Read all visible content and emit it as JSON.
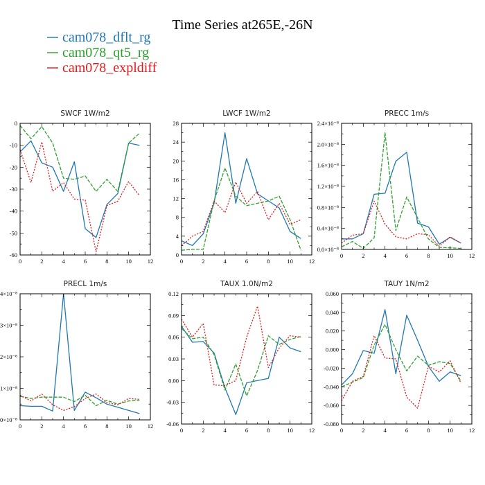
{
  "page": {
    "title": "Time Series at265E,-26N"
  },
  "legend": [
    {
      "label": "cam078_dflt_rg",
      "color": "#1f77b4"
    },
    {
      "label": "cam078_qt5_rg",
      "color": "#2ca02c"
    },
    {
      "label": "cam078_expldiff",
      "color": "#e31a1c"
    }
  ],
  "chart_data": [
    {
      "type": "line",
      "title": "SWCF  1W/m2",
      "xlim": [
        0,
        12
      ],
      "ylim": [
        -60,
        0
      ],
      "xticks": [
        0,
        2,
        4,
        6,
        8,
        10,
        12
      ],
      "xtick_labels": [
        "0",
        "2",
        "4",
        "6",
        "8",
        "10",
        "12"
      ],
      "yticks": [
        -60,
        -50,
        -40,
        -30,
        -20,
        -10,
        0
      ],
      "ytick_labels": [
        "-60",
        "-50",
        "-40",
        "-30",
        "-20",
        "-10",
        "0"
      ],
      "x": [
        0,
        1,
        2,
        3,
        4,
        5,
        6,
        7,
        8,
        9,
        10,
        11
      ],
      "series": [
        {
          "name": "cam078_dflt_rg",
          "color": "#1f77b4",
          "dash": "none",
          "values": [
            -13,
            -8,
            -18,
            -20,
            -31,
            -17.5,
            -48,
            -52,
            -37,
            -32,
            -9,
            -10
          ]
        },
        {
          "name": "cam078_qt5_rg",
          "color": "#2ca02c",
          "dash": "5,2",
          "values": [
            -1,
            -7,
            -1.5,
            -9,
            -25,
            -25.5,
            -24,
            -31,
            -25.5,
            -31,
            -9,
            -4.5
          ]
        },
        {
          "name": "cam078_expldiff",
          "color": "#e31a1c",
          "dash": "2,2",
          "values": [
            -12,
            -27,
            -8.5,
            -31,
            -27,
            -34.5,
            -35,
            -58.5,
            -37.5,
            -35.5,
            -26.5,
            -33
          ]
        }
      ]
    },
    {
      "type": "line",
      "title": "LWCF  1W/m2",
      "xlim": [
        0,
        12
      ],
      "ylim": [
        0,
        28
      ],
      "xticks": [
        0,
        2,
        4,
        6,
        8,
        10,
        12
      ],
      "xtick_labels": [
        "0",
        "2",
        "4",
        "6",
        "8",
        "10",
        "12"
      ],
      "yticks": [
        0,
        4,
        8,
        12,
        16,
        20,
        24,
        28
      ],
      "ytick_labels": [
        "0",
        "4",
        "8",
        "12",
        "16",
        "20",
        "24",
        "28"
      ],
      "x": [
        0,
        1,
        2,
        3,
        4,
        5,
        6,
        7,
        8,
        9,
        10,
        11
      ],
      "series": [
        {
          "name": "cam078_dflt_rg",
          "color": "#1f77b4",
          "dash": "none",
          "values": [
            3,
            2,
            4.5,
            11,
            26,
            11,
            20.5,
            13,
            11.5,
            10,
            5,
            3.5
          ]
        },
        {
          "name": "cam078_qt5_rg",
          "color": "#2ca02c",
          "dash": "5,2",
          "values": [
            1,
            1.2,
            1.2,
            11.5,
            18.5,
            12.5,
            10.5,
            11,
            11.5,
            12.5,
            7.5,
            1
          ]
        },
        {
          "name": "cam078_expldiff",
          "color": "#e31a1c",
          "dash": "2,2",
          "values": [
            2,
            4,
            5,
            11.5,
            9,
            15.5,
            11,
            13.5,
            7.5,
            11,
            6.5,
            7.5
          ]
        }
      ]
    },
    {
      "type": "line",
      "title": "PRECC   1m/s",
      "xlim": [
        0,
        12
      ],
      "ylim": [
        0,
        2.4
      ],
      "xticks": [
        0,
        2,
        4,
        6,
        8,
        10,
        12
      ],
      "xtick_labels": [
        "0",
        "2",
        "4",
        "6",
        "8",
        "10",
        "12"
      ],
      "yticks": [
        0,
        0.4,
        0.8,
        1.2,
        1.6,
        2.0,
        2.4
      ],
      "ytick_labels": [
        "0.0×10⁻⁸",
        "0.4×10⁻⁸",
        "0.8×10⁻⁸",
        "1.2×10⁻⁸",
        "1.6×10⁻⁸",
        "2.0×10⁻⁸",
        "2.4×10⁻⁸"
      ],
      "x": [
        0,
        1,
        2,
        3,
        4,
        5,
        6,
        7,
        8,
        9,
        10,
        11
      ],
      "series": [
        {
          "name": "cam078_dflt_rg",
          "color": "#1f77b4",
          "dash": "none",
          "values": [
            0.2,
            0.2,
            0.3,
            1.05,
            1.07,
            1.68,
            1.85,
            0.5,
            0.43,
            0.1,
            0.23,
            0.12
          ]
        },
        {
          "name": "cam078_qt5_rg",
          "color": "#2ca02c",
          "dash": "5,2",
          "values": [
            0.05,
            0.15,
            0.02,
            0.22,
            2.22,
            0.36,
            1.0,
            0.6,
            0.2,
            0.04,
            0.03,
            0.02
          ]
        },
        {
          "name": "cam078_expldiff",
          "color": "#e31a1c",
          "dash": "2,2",
          "values": [
            0.12,
            0.27,
            0.3,
            0.92,
            0.48,
            0.24,
            0.2,
            0.3,
            0.28,
            0.06,
            0.24,
            0.12
          ]
        }
      ]
    },
    {
      "type": "line",
      "title": "PRECL   1m/s",
      "xlim": [
        0,
        12
      ],
      "ylim": [
        0,
        4
      ],
      "xticks": [
        0,
        2,
        4,
        6,
        8,
        10,
        12
      ],
      "xtick_labels": [
        "0",
        "2",
        "4",
        "6",
        "8",
        "10",
        "12"
      ],
      "yticks": [
        0,
        1,
        2,
        3,
        4
      ],
      "ytick_labels": [
        "0×10⁻⁸",
        "1×10⁻⁸",
        "2×10⁻⁸",
        "3×10⁻⁸",
        "4×10⁻⁸"
      ],
      "x": [
        0,
        1,
        2,
        3,
        4,
        5,
        6,
        7,
        8,
        9,
        10,
        11
      ],
      "series": [
        {
          "name": "cam078_dflt_rg",
          "color": "#1f77b4",
          "dash": "none",
          "values": [
            0.45,
            0.43,
            0.43,
            0.28,
            4.0,
            0.3,
            0.88,
            0.7,
            0.5,
            0.4,
            0.3,
            0.2
          ]
        },
        {
          "name": "cam078_qt5_rg",
          "color": "#2ca02c",
          "dash": "5,2",
          "values": [
            0.75,
            0.68,
            0.72,
            0.72,
            0.72,
            0.58,
            0.78,
            0.45,
            0.62,
            0.5,
            0.6,
            0.62
          ]
        },
        {
          "name": "cam078_expldiff",
          "color": "#e31a1c",
          "dash": "2,2",
          "values": [
            0.78,
            0.6,
            0.82,
            0.48,
            0.3,
            0.42,
            0.68,
            0.82,
            0.55,
            0.48,
            0.68,
            0.65
          ]
        }
      ]
    },
    {
      "type": "line",
      "title": "TAUX   1.0N/m2",
      "xlim": [
        0,
        12
      ],
      "ylim": [
        -0.06,
        0.12
      ],
      "xticks": [
        0,
        2,
        4,
        6,
        8,
        10,
        12
      ],
      "xtick_labels": [
        "0",
        "2",
        "4",
        "6",
        "8",
        "10",
        "12"
      ],
      "yticks": [
        -0.06,
        -0.03,
        0,
        0.03,
        0.06,
        0.09,
        0.12
      ],
      "ytick_labels": [
        "-0.06",
        "-0.03",
        "0.00",
        "0.03",
        "0.06",
        "0.09",
        "0.12"
      ],
      "x": [
        0,
        1,
        2,
        3,
        4,
        5,
        6,
        7,
        8,
        9,
        10,
        11
      ],
      "series": [
        {
          "name": "cam078_dflt_rg",
          "color": "#1f77b4",
          "dash": "none",
          "values": [
            0.075,
            0.053,
            0.054,
            0.038,
            -0.01,
            -0.047,
            -0.003,
            0.0,
            0.003,
            0.06,
            0.045,
            0.04
          ]
        },
        {
          "name": "cam078_qt5_rg",
          "color": "#2ca02c",
          "dash": "5,2",
          "values": [
            0.072,
            0.058,
            0.06,
            0.036,
            -0.013,
            0.023,
            -0.021,
            0.014,
            0.062,
            0.05,
            0.057,
            0.061
          ]
        },
        {
          "name": "cam078_expldiff",
          "color": "#e31a1c",
          "dash": "2,2",
          "values": [
            0.085,
            0.06,
            0.079,
            -0.006,
            -0.007,
            0.0,
            0.06,
            0.103,
            0.018,
            0.045,
            0.062,
            0.06
          ]
        }
      ]
    },
    {
      "type": "line",
      "title": "TAUY   1N/m2",
      "xlim": [
        0,
        12
      ],
      "ylim": [
        -0.08,
        0.06
      ],
      "xticks": [
        0,
        2,
        4,
        6,
        8,
        10,
        12
      ],
      "xtick_labels": [
        "0",
        "2",
        "4",
        "6",
        "8",
        "10",
        "12"
      ],
      "yticks": [
        -0.08,
        -0.06,
        -0.04,
        -0.02,
        0,
        0.02,
        0.04,
        0.06
      ],
      "ytick_labels": [
        "-0.080",
        "-0.060",
        "-0.040",
        "-0.020",
        "0.000",
        "0.020",
        "0.040",
        "0.060"
      ],
      "x": [
        0,
        1,
        2,
        3,
        4,
        5,
        6,
        7,
        8,
        9,
        10,
        11
      ],
      "series": [
        {
          "name": "cam078_dflt_rg",
          "color": "#1f77b4",
          "dash": "none",
          "values": [
            -0.038,
            -0.026,
            -0.001,
            -0.004,
            0.043,
            -0.026,
            0.037,
            0.01,
            -0.018,
            -0.034,
            -0.024,
            -0.028
          ]
        },
        {
          "name": "cam078_qt5_rg",
          "color": "#2ca02c",
          "dash": "5,2",
          "values": [
            -0.04,
            -0.035,
            -0.03,
            0.005,
            0.027,
            0.0,
            -0.023,
            -0.007,
            -0.017,
            -0.013,
            -0.015,
            -0.034
          ]
        },
        {
          "name": "cam078_expldiff",
          "color": "#e31a1c",
          "dash": "2,2",
          "values": [
            -0.055,
            -0.034,
            -0.029,
            0.015,
            -0.009,
            -0.01,
            -0.051,
            -0.063,
            -0.018,
            -0.024,
            -0.012,
            -0.036
          ]
        }
      ]
    }
  ]
}
